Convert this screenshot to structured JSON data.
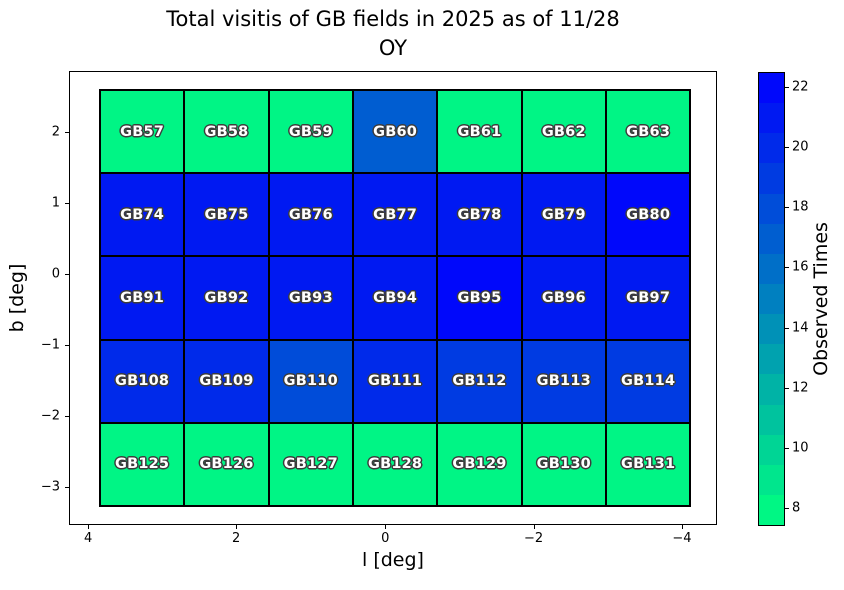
{
  "title": {
    "line1": "Total visitis of GB fields in 2025 as of 11/28",
    "line2": "OY"
  },
  "chart_data": {
    "type": "heatmap",
    "title": "Total visitis of GB fields in 2025 as of 11/28 OY",
    "xlabel": "l [deg]",
    "ylabel": "b [deg]",
    "colorbar_label": "Observed Times",
    "colormap": "winter_r",
    "value_range": [
      7.4,
      22.5
    ],
    "colorbar_levels": 15,
    "x_axis_ticks": [
      "4",
      "2",
      "0",
      "−2",
      "−4"
    ],
    "y_axis_ticks": [
      "2",
      "1",
      "0",
      "−1",
      "−2",
      "−3"
    ],
    "colorbar_ticks": [
      22,
      20,
      18,
      16,
      14,
      12,
      10,
      8
    ],
    "grid_on": false,
    "rows": [
      {
        "fields": [
          "GB57",
          "GB58",
          "GB59",
          "GB60",
          "GB61",
          "GB62",
          "GB63"
        ],
        "observed_times": [
          8,
          8,
          8,
          17,
          8,
          8,
          8
        ]
      },
      {
        "fields": [
          "GB74",
          "GB75",
          "GB76",
          "GB77",
          "GB78",
          "GB79",
          "GB80"
        ],
        "observed_times": [
          21,
          21,
          21,
          21,
          21,
          21,
          22
        ]
      },
      {
        "fields": [
          "GB91",
          "GB92",
          "GB93",
          "GB94",
          "GB95",
          "GB96",
          "GB97"
        ],
        "observed_times": [
          21,
          21,
          21,
          21,
          22,
          21,
          21
        ]
      },
      {
        "fields": [
          "GB108",
          "GB109",
          "GB110",
          "GB111",
          "GB112",
          "GB113",
          "GB114"
        ],
        "observed_times": [
          20,
          20,
          18,
          20,
          19,
          19,
          19
        ]
      },
      {
        "fields": [
          "GB125",
          "GB126",
          "GB127",
          "GB128",
          "GB129",
          "GB130",
          "GB131"
        ],
        "observed_times": [
          8,
          8,
          8,
          8,
          8,
          8,
          8
        ]
      }
    ],
    "colors": {
      "cmap_low_green": "#00f884",
      "cmap_high_blue": "#0000ff",
      "cell_border": "#000000",
      "label_text": "#ffffff",
      "label_outline": "#3c3c3c"
    }
  }
}
